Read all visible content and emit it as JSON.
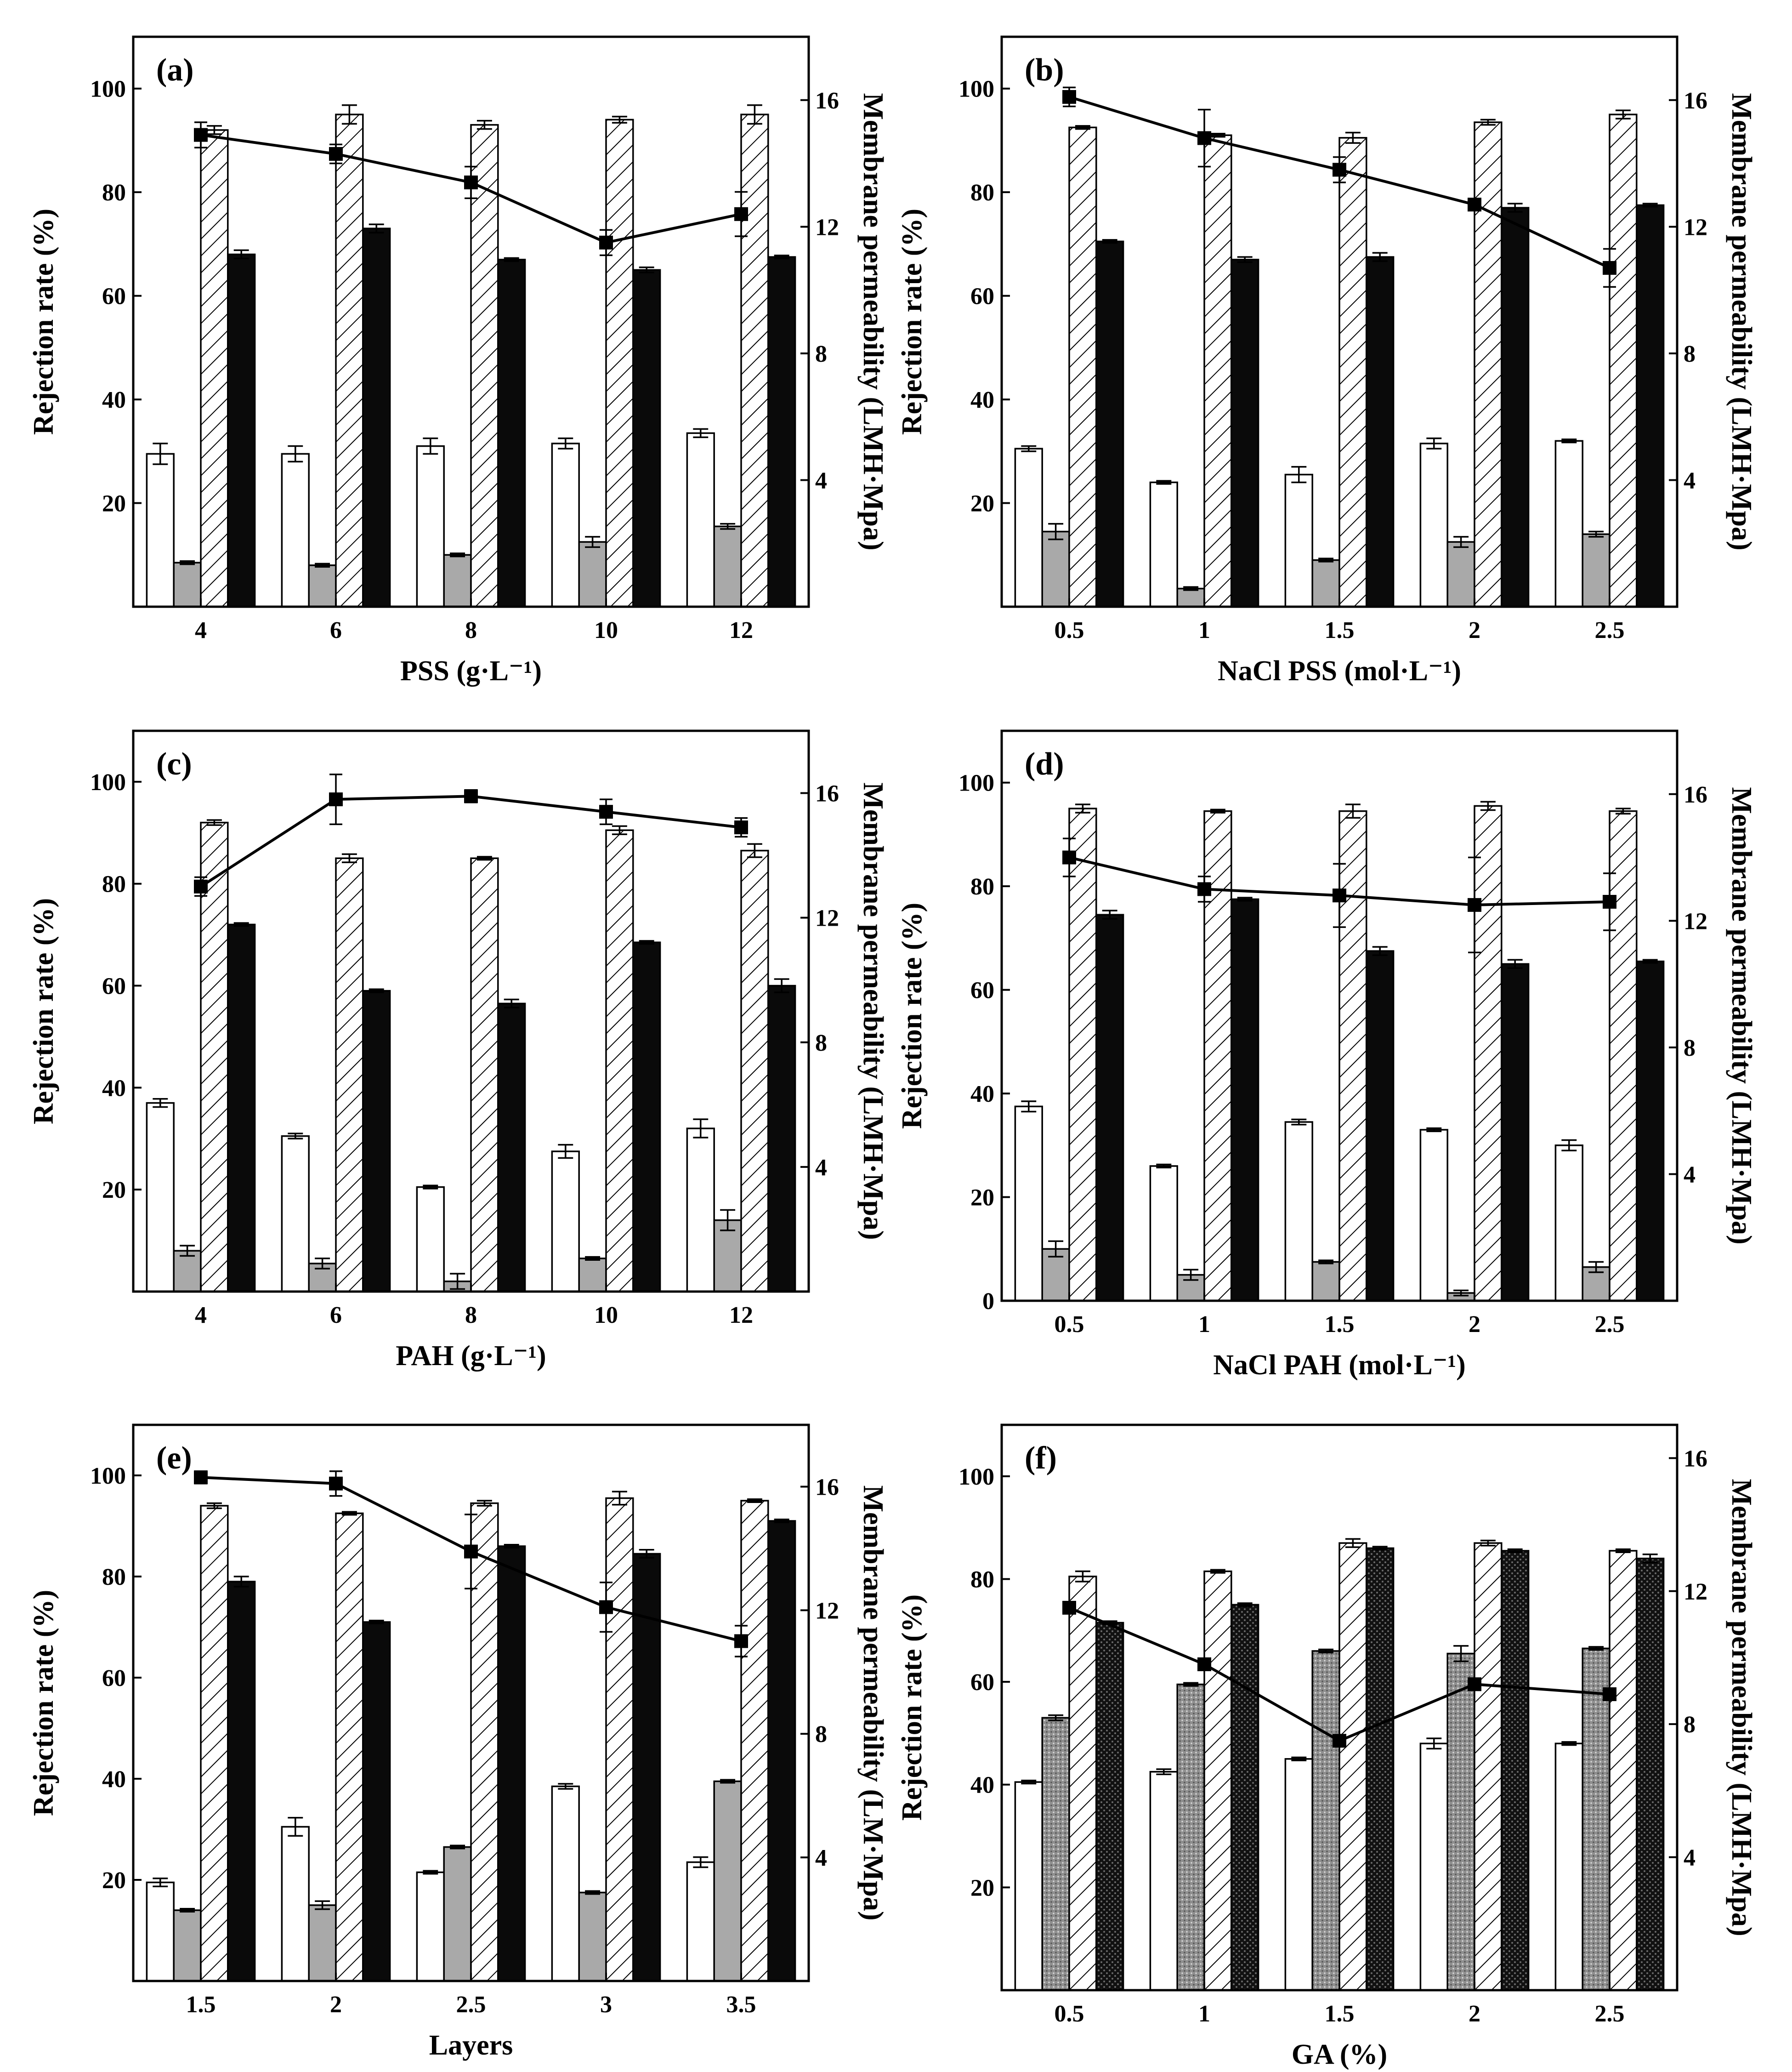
{
  "figure": {
    "panel_count": 6
  },
  "colors": {
    "white_bar": "#ffffff",
    "gray_bar": "#a9a9a9",
    "black_bar": "#0a0a0a",
    "line": "#000000"
  },
  "chart_data": [
    {
      "type": "bar",
      "panel_label": "(a)",
      "xlabel": "PSS (g·L⁻¹)",
      "ylabel": "Rejection rate (%)",
      "y2label": "Membrane permeability (LMH·Mpa)",
      "categories": [
        "4",
        "6",
        "8",
        "10",
        "12"
      ],
      "ylim": [
        0,
        110
      ],
      "yticks": [
        "20",
        "40",
        "60",
        "80",
        "100"
      ],
      "y2lim": [
        0,
        18
      ],
      "y2ticks": [
        "4",
        "8",
        "12",
        "16"
      ],
      "series": [
        {
          "name": "white",
          "style": "white",
          "values": [
            29.5,
            29.5,
            31,
            31.5,
            33.5
          ],
          "errors": [
            2,
            1.5,
            1.5,
            1,
            0.8
          ]
        },
        {
          "name": "gray",
          "style": "gray",
          "values": [
            8.5,
            8,
            10,
            12.5,
            15.5
          ],
          "errors": [
            0.3,
            0.3,
            0.3,
            1,
            0.5
          ]
        },
        {
          "name": "hatched",
          "style": "hatched",
          "values": [
            92,
            95,
            93,
            94,
            95
          ],
          "errors": [
            0.8,
            1.8,
            0.8,
            0.6,
            1.8
          ]
        },
        {
          "name": "black",
          "style": "black",
          "values": [
            68,
            73,
            67,
            65,
            67.5
          ],
          "errors": [
            0.8,
            0.8,
            0.3,
            0.5,
            0.3
          ]
        }
      ],
      "line": {
        "name": "Membrane permeability",
        "values": [
          14.9,
          14.3,
          13.4,
          11.5,
          12.4
        ],
        "errors": [
          0.4,
          0.3,
          0.5,
          0.4,
          0.7
        ]
      }
    },
    {
      "type": "bar",
      "panel_label": "(b)",
      "xlabel": "NaCl PSS (mol·L⁻¹)",
      "ylabel": "Rejection rate (%)",
      "y2label": "Membrane permeability (LMH·Mpa)",
      "categories": [
        "0.5",
        "1",
        "1.5",
        "2",
        "2.5"
      ],
      "ylim": [
        0,
        110
      ],
      "yticks": [
        "20",
        "40",
        "60",
        "80",
        "100"
      ],
      "y2lim": [
        0,
        18
      ],
      "y2ticks": [
        "4",
        "8",
        "12",
        "16"
      ],
      "series": [
        {
          "name": "white",
          "style": "white",
          "values": [
            30.5,
            24,
            25.5,
            31.5,
            32
          ],
          "errors": [
            0.5,
            0.3,
            1.5,
            1,
            0.3
          ]
        },
        {
          "name": "gray",
          "style": "gray",
          "values": [
            14.5,
            3.5,
            9,
            12.5,
            14
          ],
          "errors": [
            1.5,
            0.3,
            0.3,
            1,
            0.5
          ]
        },
        {
          "name": "hatched",
          "style": "hatched",
          "values": [
            92.5,
            91,
            90.5,
            93.5,
            95
          ],
          "errors": [
            0.3,
            0.3,
            1,
            0.5,
            0.8
          ]
        },
        {
          "name": "black",
          "style": "black",
          "values": [
            70.5,
            67,
            67.5,
            77,
            77.5
          ],
          "errors": [
            0.3,
            0.5,
            0.8,
            0.8,
            0.3
          ]
        }
      ],
      "line": {
        "name": "Membrane permeability",
        "values": [
          16.1,
          14.8,
          13.8,
          12.7,
          10.7
        ],
        "errors": [
          0.3,
          0.9,
          0.4,
          0.1,
          0.6
        ]
      }
    },
    {
      "type": "bar",
      "panel_label": "(c)",
      "xlabel": "PAH (g·L⁻¹)",
      "ylabel": "Rejection rate (%)",
      "y2label": "Membrane permeability (LMH·Mpa)",
      "categories": [
        "4",
        "6",
        "8",
        "10",
        "12"
      ],
      "ylim": [
        0,
        110
      ],
      "yticks": [
        "20",
        "40",
        "60",
        "80",
        "100"
      ],
      "y2lim": [
        0,
        18
      ],
      "y2ticks": [
        "4",
        "8",
        "12",
        "16"
      ],
      "series": [
        {
          "name": "white",
          "style": "white",
          "values": [
            37,
            30.5,
            20.5,
            27.5,
            32
          ],
          "errors": [
            0.8,
            0.5,
            0.3,
            1.3,
            1.8
          ]
        },
        {
          "name": "gray",
          "style": "gray",
          "values": [
            8,
            5.5,
            2,
            6.5,
            14
          ],
          "errors": [
            1,
            1,
            1.5,
            0.3,
            2
          ]
        },
        {
          "name": "hatched",
          "style": "hatched",
          "values": [
            92,
            85,
            85,
            90.5,
            86.5
          ],
          "errors": [
            0.5,
            0.8,
            0.3,
            0.8,
            1.3
          ]
        },
        {
          "name": "black",
          "style": "black",
          "values": [
            72,
            59,
            56.5,
            68.5,
            60
          ],
          "errors": [
            0.3,
            0.3,
            0.8,
            0.3,
            1.3
          ]
        }
      ],
      "line": {
        "name": "Membrane permeability",
        "values": [
          13,
          15.8,
          15.9,
          15.4,
          14.9
        ],
        "errors": [
          0.3,
          0.8,
          0.2,
          0.4,
          0.3
        ]
      }
    },
    {
      "type": "bar",
      "panel_label": "(d)",
      "xlabel": "NaCl PAH (mol·L⁻¹)",
      "ylabel": "Rejection rate (%)",
      "y2label": "Membrane permeability (LMH·Mpa)",
      "categories": [
        "0.5",
        "1",
        "1.5",
        "2",
        "2.5"
      ],
      "ylim": [
        0,
        110
      ],
      "yticks": [
        "0",
        "20",
        "40",
        "60",
        "80",
        "100"
      ],
      "y2lim": [
        0,
        18
      ],
      "y2ticks": [
        "4",
        "8",
        "12",
        "16"
      ],
      "series": [
        {
          "name": "white",
          "style": "white",
          "values": [
            37.5,
            26,
            34.5,
            33,
            30
          ],
          "errors": [
            1,
            0.3,
            0.5,
            0.3,
            1
          ]
        },
        {
          "name": "gray",
          "style": "gray",
          "values": [
            10,
            5,
            7.5,
            1.5,
            6.5
          ],
          "errors": [
            1.5,
            1,
            0.3,
            0.5,
            1
          ]
        },
        {
          "name": "hatched",
          "style": "hatched",
          "values": [
            95,
            94.5,
            94.5,
            95.5,
            94.5
          ],
          "errors": [
            0.8,
            0.3,
            1.3,
            0.8,
            0.5
          ]
        },
        {
          "name": "black",
          "style": "black",
          "values": [
            74.5,
            77.5,
            67.5,
            65,
            65.5
          ],
          "errors": [
            0.8,
            0.3,
            0.8,
            0.8,
            0.3
          ]
        }
      ],
      "line": {
        "name": "Membrane permeability",
        "values": [
          14,
          13,
          12.8,
          12.5,
          12.6
        ],
        "errors": [
          0.6,
          0.4,
          1,
          1.5,
          0.9
        ]
      }
    },
    {
      "type": "bar",
      "panel_label": "(e)",
      "xlabel": "Layers",
      "ylabel": "Rejection rate (%)",
      "y2label": "Membrane permeability (LM·Mpa)",
      "categories": [
        "1.5",
        "2",
        "2.5",
        "3",
        "3.5"
      ],
      "ylim": [
        0,
        110
      ],
      "yticks": [
        "20",
        "40",
        "60",
        "80",
        "100"
      ],
      "y2lim": [
        0,
        18
      ],
      "y2ticks": [
        "4",
        "8",
        "12",
        "16"
      ],
      "series": [
        {
          "name": "white",
          "style": "white",
          "values": [
            19.5,
            30.5,
            21.5,
            38.5,
            23.5
          ],
          "errors": [
            0.8,
            1.8,
            0.3,
            0.5,
            1
          ]
        },
        {
          "name": "gray",
          "style": "gray",
          "values": [
            14,
            15,
            26.5,
            17.5,
            39.5
          ],
          "errors": [
            0.3,
            0.8,
            0.3,
            0.3,
            0.3
          ]
        },
        {
          "name": "hatched",
          "style": "hatched",
          "values": [
            94,
            92.5,
            94.5,
            95.5,
            95
          ],
          "errors": [
            0.5,
            0.3,
            0.5,
            1.3,
            0.3
          ]
        },
        {
          "name": "black",
          "style": "black",
          "values": [
            79,
            71,
            86,
            84.5,
            91
          ],
          "errors": [
            1,
            0.3,
            0.3,
            0.8,
            0.3
          ]
        }
      ],
      "line": {
        "name": "Membrane permeability",
        "values": [
          16.3,
          16.1,
          13.9,
          12.1,
          11.0
        ],
        "errors": [
          0.2,
          0.4,
          1.2,
          0.8,
          0.5
        ]
      }
    },
    {
      "type": "bar",
      "panel_label": "(f)",
      "xlabel": "GA (%)",
      "ylabel": "Rejection rate (%)",
      "y2label": "Membrane permeability (LMH·Mpa)",
      "categories": [
        "0.5",
        "1",
        "1.5",
        "2",
        "2.5"
      ],
      "ylim": [
        0,
        110
      ],
      "yticks": [
        "20",
        "40",
        "60",
        "80",
        "100"
      ],
      "y2lim": [
        0,
        17
      ],
      "y2ticks": [
        "4",
        "8",
        "12",
        "16"
      ],
      "series": [
        {
          "name": "white",
          "style": "white",
          "values": [
            40.5,
            42.5,
            45,
            48,
            48
          ],
          "errors": [
            0.3,
            0.5,
            0.3,
            1,
            0.3
          ]
        },
        {
          "name": "dotted-gray",
          "style": "dotgray",
          "values": [
            53,
            59.5,
            66,
            65.5,
            66.5
          ],
          "errors": [
            0.5,
            0.3,
            0.3,
            1.5,
            0.3
          ]
        },
        {
          "name": "hatched",
          "style": "hatched",
          "values": [
            80.5,
            81.5,
            87,
            87,
            85.5
          ],
          "errors": [
            1,
            0.3,
            0.8,
            0.5,
            0.3
          ]
        },
        {
          "name": "dotted-black",
          "style": "dotblack",
          "values": [
            71.5,
            75,
            86,
            85.5,
            84
          ],
          "errors": [
            0.3,
            0.3,
            0.3,
            0.3,
            0.8
          ]
        }
      ],
      "line": {
        "name": "Membrane permeability",
        "values": [
          11.5,
          9.8,
          7.5,
          9.2,
          8.9
        ],
        "errors": [
          0.1,
          0.1,
          0.1,
          0.1,
          0.1
        ]
      }
    }
  ]
}
